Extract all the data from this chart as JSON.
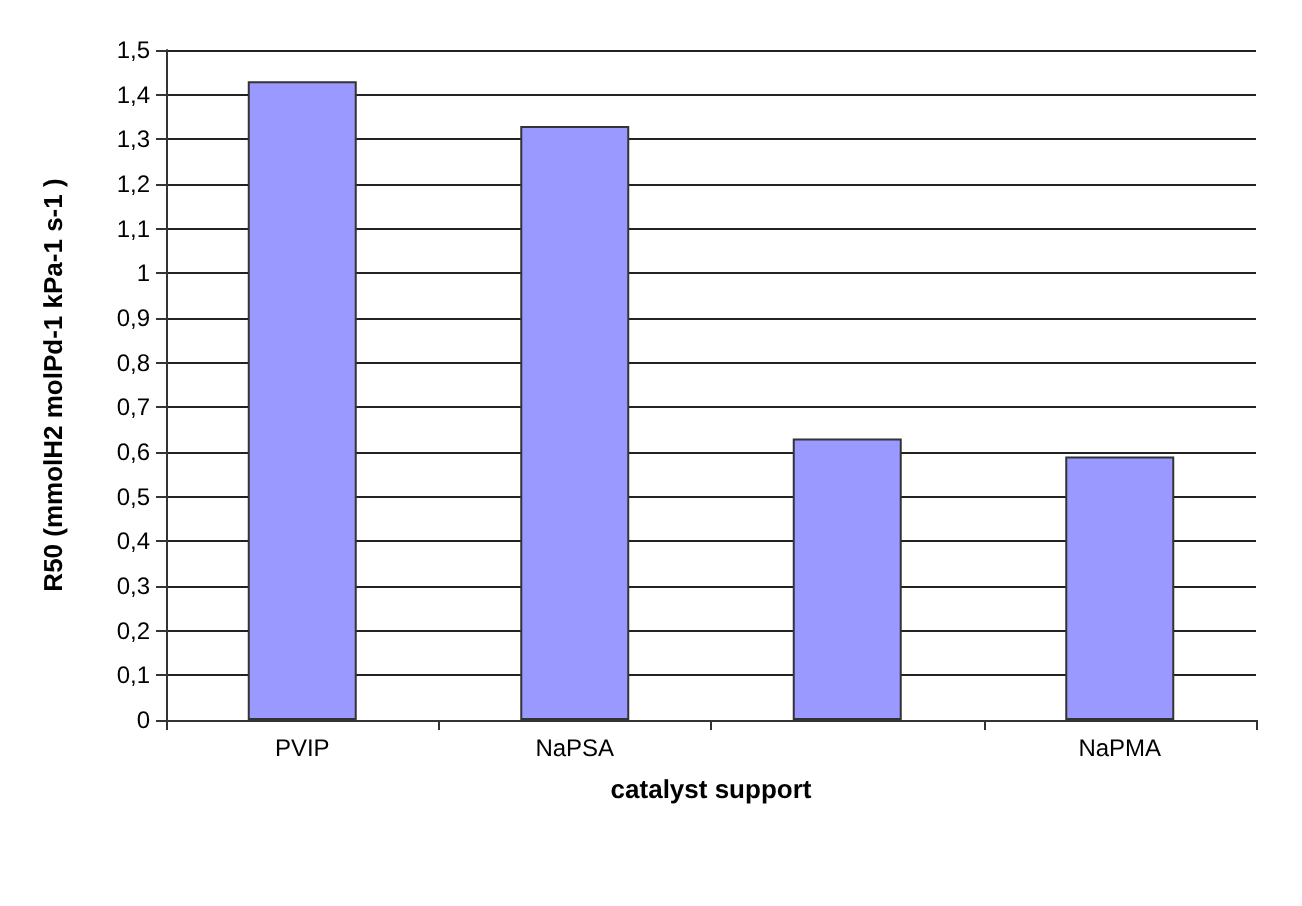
{
  "chart_data": {
    "type": "bar",
    "xlabel": "catalyst support",
    "ylabel": "R50 (mmolH2 molPd-1 kPa-1 s-1 )",
    "categories": [
      "PVIP",
      "NaPSA",
      null,
      "NaPMA"
    ],
    "values": [
      1.43,
      1.33,
      0.63,
      0.59
    ],
    "color": "#9999ff",
    "ylim": [
      0,
      1.5
    ],
    "yticks": [
      0,
      {
        "value": 0.1,
        "label": "0,1"
      },
      {
        "value": 0.2,
        "label": "0,2"
      },
      {
        "value": 0.3,
        "label": "0,3"
      },
      {
        "value": 0.4,
        "label": "0,4"
      },
      {
        "value": 0.5,
        "label": "0,5"
      },
      {
        "value": 0.6,
        "label": "0,6"
      },
      {
        "value": 0.7,
        "label": "0,7"
      },
      {
        "value": 0.8,
        "label": "0,8"
      },
      {
        "value": 0.9,
        "label": "0,9"
      },
      1,
      {
        "value": 1.1,
        "label": "1,1"
      },
      {
        "value": 1.2,
        "label": "1,2"
      },
      {
        "value": 1.3,
        "label": "1,3"
      },
      {
        "value": 1.4,
        "label": "1,4"
      },
      {
        "value": 1.5,
        "label": "1,5"
      }
    ],
    "grid": "y"
  }
}
